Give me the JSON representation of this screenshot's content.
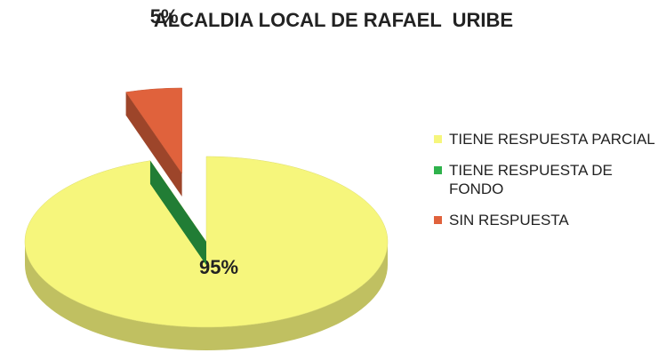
{
  "chart_data": {
    "type": "pie",
    "title": "ALCALDIA LOCAL DE RAFAEL  URIBE",
    "categories": [
      "TIENE RESPUESTA PARCIAL",
      "TIENE RESPUESTA DE FONDO",
      "SIN RESPUESTA"
    ],
    "values": [
      95,
      0,
      5
    ],
    "value_labels": [
      "95%",
      null,
      "5%"
    ],
    "colors": [
      "#f6f67c",
      "#2fb24c",
      "#e0623c"
    ],
    "legend": "right"
  }
}
